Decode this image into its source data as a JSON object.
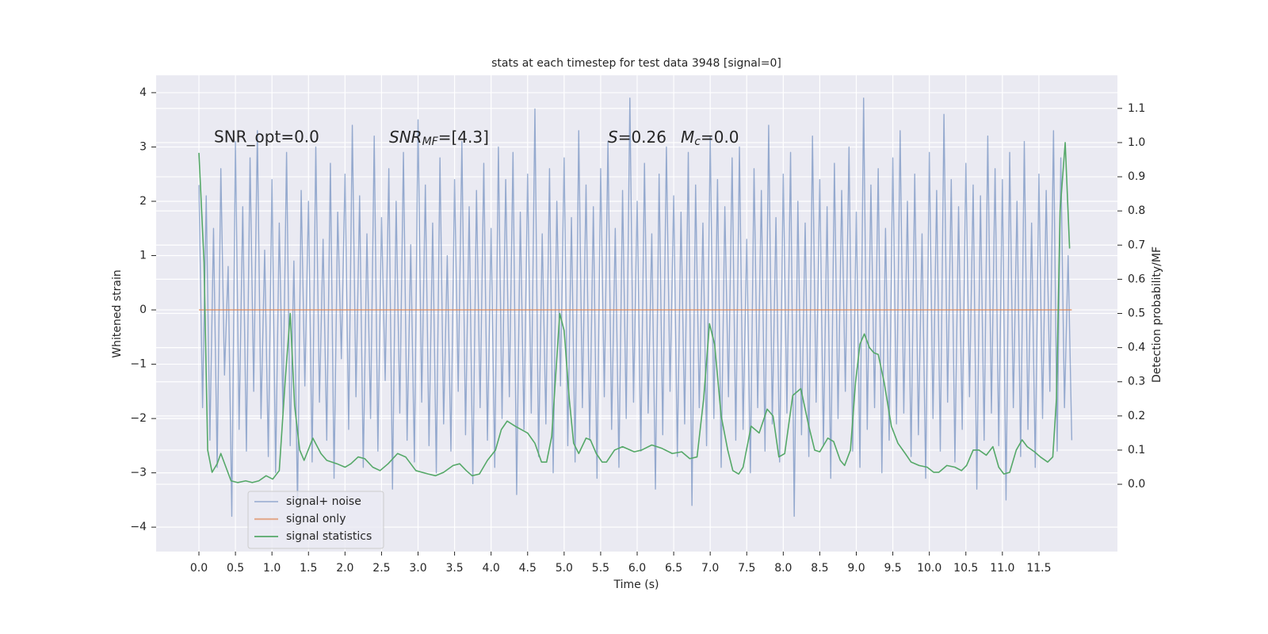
{
  "chart_data": {
    "type": "line",
    "title": "stats at each timestep for test data 3948 [signal=0]",
    "x_label": "Time (s)",
    "y_label": "Whitened strain",
    "y2_label": "Detection probability/MF",
    "annotations": {
      "snr_opt": "SNR_opt=0.0",
      "snr_mf": [
        "SNR",
        "MF",
        "=[4.3]"
      ],
      "s": [
        "S",
        "=0.26"
      ],
      "mc": [
        "M",
        "c",
        "=0.0"
      ]
    },
    "grid": true,
    "legend": "lower left",
    "xlim": [
      -0.586,
      12.575
    ],
    "ylim": [
      -4.45,
      4.32
    ],
    "y2lim": [
      -0.197,
      1.197
    ],
    "xticks": [
      {
        "value": 0,
        "label": "0.0"
      },
      0.5,
      {
        "value": 1,
        "label": "1.0"
      },
      1.5,
      {
        "value": 2,
        "label": "2.0"
      },
      2.5,
      {
        "value": 3,
        "label": "3.0"
      },
      3.5,
      {
        "value": 4,
        "label": "4.0"
      },
      4.5,
      {
        "value": 5,
        "label": "5.0"
      },
      5.5,
      {
        "value": 6,
        "label": "6.0"
      },
      6.5,
      {
        "value": 7,
        "label": "7.0"
      },
      7.5,
      {
        "value": 8,
        "label": "8.0"
      },
      8.5,
      {
        "value": 9,
        "label": "9.0"
      },
      9.5,
      {
        "value": 10,
        "label": "10.0"
      },
      10.5,
      {
        "value": 11,
        "label": "11.0"
      },
      11.5
    ],
    "yticks": [
      {
        "value": -4,
        "label": "−4"
      },
      {
        "value": -3,
        "label": "−3"
      },
      {
        "value": -2,
        "label": "−2"
      },
      {
        "value": -1,
        "label": "−1"
      },
      0,
      1,
      2,
      3,
      4
    ],
    "y2ticks": [
      {
        "value": 0,
        "label": "0.0"
      },
      0.1,
      0.2,
      0.3,
      0.4,
      0.5,
      0.6,
      0.7,
      0.8,
      0.9,
      {
        "value": 1,
        "label": "1.0"
      },
      1.1
    ],
    "series": [
      {
        "name": "signal+ noise",
        "color": "#4c72b0",
        "axis": "y",
        "x": [
          0,
          0.05,
          0.1,
          0.15,
          0.2,
          0.25,
          0.3,
          0.35,
          0.4,
          0.45,
          0.5,
          0.55,
          0.6,
          0.65,
          0.7,
          0.75,
          0.8,
          0.85,
          0.9,
          0.95,
          1,
          1.05,
          1.1,
          1.15,
          1.2,
          1.25,
          1.3,
          1.35,
          1.4,
          1.45,
          1.5,
          1.55,
          1.6,
          1.65,
          1.7,
          1.75,
          1.8,
          1.85,
          1.9,
          1.95,
          2,
          2.05,
          2.1,
          2.15,
          2.2,
          2.25,
          2.3,
          2.35,
          2.4,
          2.45,
          2.5,
          2.55,
          2.6,
          2.65,
          2.7,
          2.75,
          2.8,
          2.85,
          2.9,
          2.95,
          3,
          3.05,
          3.1,
          3.15,
          3.2,
          3.25,
          3.3,
          3.35,
          3.4,
          3.45,
          3.5,
          3.55,
          3.6,
          3.65,
          3.7,
          3.75,
          3.8,
          3.85,
          3.9,
          3.95,
          4,
          4.05,
          4.1,
          4.15,
          4.2,
          4.25,
          4.3,
          4.35,
          4.4,
          4.45,
          4.5,
          4.55,
          4.6,
          4.65,
          4.7,
          4.75,
          4.8,
          4.85,
          4.9,
          4.95,
          5,
          5.05,
          5.1,
          5.15,
          5.2,
          5.25,
          5.3,
          5.35,
          5.4,
          5.45,
          5.5,
          5.55,
          5.6,
          5.65,
          5.7,
          5.75,
          5.8,
          5.85,
          5.9,
          5.95,
          6,
          6.05,
          6.1,
          6.15,
          6.2,
          6.25,
          6.3,
          6.35,
          6.4,
          6.45,
          6.5,
          6.55,
          6.6,
          6.65,
          6.7,
          6.75,
          6.8,
          6.85,
          6.9,
          6.95,
          7,
          7.05,
          7.1,
          7.15,
          7.2,
          7.25,
          7.3,
          7.35,
          7.4,
          7.45,
          7.5,
          7.55,
          7.6,
          7.65,
          7.7,
          7.75,
          7.8,
          7.85,
          7.9,
          7.95,
          8,
          8.05,
          8.1,
          8.15,
          8.2,
          8.25,
          8.3,
          8.35,
          8.4,
          8.45,
          8.5,
          8.55,
          8.6,
          8.65,
          8.7,
          8.75,
          8.8,
          8.85,
          8.9,
          8.95,
          9,
          9.05,
          9.1,
          9.15,
          9.2,
          9.25,
          9.3,
          9.35,
          9.4,
          9.45,
          9.5,
          9.55,
          9.6,
          9.65,
          9.7,
          9.75,
          9.8,
          9.85,
          9.9,
          9.95,
          10,
          10.05,
          10.1,
          10.15,
          10.2,
          10.25,
          10.3,
          10.35,
          10.4,
          10.45,
          10.5,
          10.55,
          10.6,
          10.65,
          10.7,
          10.75,
          10.8,
          10.85,
          10.9,
          10.95,
          11,
          11.05,
          11.1,
          11.15,
          11.2,
          11.25,
          11.3,
          11.35,
          11.4,
          11.45,
          11.5,
          11.55,
          11.6,
          11.65,
          11.7,
          11.75,
          11.8,
          11.85,
          11.9,
          11.95
        ],
        "values": [
          2.3,
          -1.8,
          2.1,
          -2.4,
          1.5,
          -2.9,
          2.6,
          -1.2,
          0.8,
          -3.8,
          3.1,
          -2.2,
          1.9,
          -2.6,
          2.8,
          -1.5,
          3.3,
          -2.0,
          1.1,
          -2.7,
          2.4,
          -3.0,
          1.6,
          -1.9,
          2.9,
          -2.5,
          0.9,
          -3.6,
          2.2,
          -1.4,
          2.0,
          -2.8,
          3.0,
          -1.7,
          1.3,
          -2.4,
          2.7,
          -3.1,
          1.8,
          -0.9,
          2.5,
          -2.2,
          3.4,
          -1.6,
          2.1,
          -2.9,
          1.4,
          -2.0,
          3.2,
          -2.6,
          1.7,
          -1.3,
          2.6,
          -3.3,
          2.0,
          -1.9,
          2.9,
          -2.4,
          1.2,
          -2.8,
          3.5,
          -1.7,
          2.3,
          -2.5,
          1.6,
          -3.0,
          2.8,
          -2.1,
          1.0,
          -2.6,
          2.4,
          -1.5,
          3.1,
          -2.3,
          1.9,
          -3.2,
          2.2,
          -1.8,
          2.7,
          -2.4,
          1.5,
          -2.9,
          3.0,
          -2.0,
          2.4,
          -1.6,
          2.9,
          -3.4,
          1.8,
          -2.2,
          2.5,
          -1.9,
          3.7,
          -2.7,
          1.4,
          -2.1,
          2.6,
          -3.0,
          2.0,
          -1.4,
          2.8,
          -2.5,
          1.7,
          -2.8,
          3.3,
          -1.8,
          2.3,
          -2.4,
          1.9,
          -3.1,
          2.6,
          -1.6,
          3.1,
          -2.2,
          1.5,
          -2.9,
          2.2,
          -2.0,
          3.9,
          -1.7,
          2.0,
          -2.6,
          2.7,
          -1.9,
          1.4,
          -3.3,
          2.5,
          -2.3,
          3.0,
          -1.5,
          2.1,
          -2.7,
          1.8,
          -2.1,
          2.9,
          -3.6,
          2.3,
          -1.8,
          1.6,
          -2.5,
          3.2,
          -2.0,
          2.4,
          -2.9,
          1.9,
          -1.6,
          2.8,
          -2.4,
          3.0,
          -2.2,
          1.3,
          -3.0,
          2.6,
          -1.8,
          2.2,
          -2.6,
          3.4,
          -2.1,
          1.7,
          -2.8,
          2.5,
          -1.9,
          2.9,
          -3.8,
          2.0,
          -2.3,
          1.6,
          -2.7,
          3.2,
          -1.7,
          2.4,
          -2.5,
          1.9,
          -3.1,
          2.7,
          -2.0,
          2.2,
          -1.5,
          3.0,
          -2.6,
          1.8,
          -2.9,
          3.9,
          -2.2,
          2.3,
          -1.8,
          2.6,
          -3.0,
          1.5,
          -2.4,
          2.8,
          -2.1,
          3.3,
          -1.9,
          2.0,
          -2.7,
          2.5,
          -2.3,
          1.4,
          -3.1,
          2.9,
          -2.0,
          2.2,
          -2.6,
          3.6,
          -1.7,
          2.4,
          -2.8,
          1.9,
          -2.2,
          2.7,
          -1.6,
          2.3,
          -3.3,
          2.1,
          -2.4,
          3.2,
          -1.9,
          2.6,
          -2.5,
          2.4,
          -3.5,
          2.9,
          -1.8,
          2.0,
          -2.7,
          3.1,
          -2.2,
          1.6,
          -2.9,
          2.5,
          -2.0,
          2.2,
          -1.5,
          3.3,
          -2.6,
          2.8,
          -1.8,
          1.0,
          -2.4
        ]
      },
      {
        "name": "signal only",
        "color": "#dd8452",
        "axis": "y",
        "x": [
          0,
          11.95
        ],
        "values": [
          0,
          0
        ]
      },
      {
        "name": "signal statistics",
        "color": "#55a868",
        "axis": "y2",
        "x": [
          0,
          0.07,
          0.12,
          0.18,
          0.25,
          0.3,
          0.37,
          0.44,
          0.53,
          0.64,
          0.73,
          0.82,
          0.92,
          1.01,
          1.1,
          1.18,
          1.25,
          1.31,
          1.38,
          1.44,
          1.56,
          1.67,
          1.75,
          1.89,
          2.0,
          2.08,
          2.18,
          2.27,
          2.38,
          2.48,
          2.59,
          2.72,
          2.83,
          2.97,
          3.14,
          3.24,
          3.35,
          3.48,
          3.57,
          3.66,
          3.74,
          3.84,
          3.95,
          4.06,
          4.14,
          4.22,
          4.33,
          4.5,
          4.6,
          4.69,
          4.76,
          4.83,
          4.94,
          5.0,
          5.07,
          5.13,
          5.2,
          5.3,
          5.36,
          5.44,
          5.52,
          5.58,
          5.69,
          5.8,
          5.96,
          6.06,
          6.2,
          6.34,
          6.48,
          6.61,
          6.72,
          6.82,
          6.91,
          6.99,
          7.06,
          7.15,
          7.24,
          7.31,
          7.39,
          7.45,
          7.56,
          7.67,
          7.78,
          7.86,
          7.94,
          8.02,
          8.13,
          8.24,
          8.35,
          8.43,
          8.5,
          8.61,
          8.69,
          8.78,
          8.84,
          8.92,
          8.99,
          9.05,
          9.11,
          9.18,
          9.24,
          9.3,
          9.38,
          9.48,
          9.57,
          9.67,
          9.75,
          9.86,
          9.97,
          10.06,
          10.13,
          10.24,
          10.35,
          10.44,
          10.51,
          10.6,
          10.68,
          10.78,
          10.87,
          10.95,
          11.02,
          11.1,
          11.19,
          11.27,
          11.34,
          11.44,
          11.52,
          11.62,
          11.69,
          11.74,
          11.79,
          11.86,
          11.92
        ],
        "values": [
          0.97,
          0.65,
          0.1,
          0.035,
          0.06,
          0.09,
          0.05,
          0.01,
          0.005,
          0.01,
          0.005,
          0.01,
          0.025,
          0.015,
          0.04,
          0.3,
          0.5,
          0.23,
          0.1,
          0.07,
          0.135,
          0.09,
          0.07,
          0.06,
          0.05,
          0.06,
          0.08,
          0.075,
          0.05,
          0.04,
          0.06,
          0.09,
          0.08,
          0.04,
          0.03,
          0.025,
          0.035,
          0.055,
          0.06,
          0.04,
          0.025,
          0.03,
          0.07,
          0.1,
          0.16,
          0.185,
          0.17,
          0.15,
          0.12,
          0.065,
          0.065,
          0.14,
          0.5,
          0.45,
          0.25,
          0.12,
          0.09,
          0.135,
          0.13,
          0.09,
          0.065,
          0.065,
          0.1,
          0.11,
          0.095,
          0.1,
          0.115,
          0.105,
          0.09,
          0.095,
          0.075,
          0.08,
          0.25,
          0.47,
          0.41,
          0.2,
          0.1,
          0.04,
          0.03,
          0.05,
          0.17,
          0.15,
          0.22,
          0.2,
          0.08,
          0.09,
          0.26,
          0.28,
          0.17,
          0.1,
          0.095,
          0.135,
          0.125,
          0.07,
          0.055,
          0.1,
          0.3,
          0.41,
          0.44,
          0.4,
          0.385,
          0.38,
          0.3,
          0.17,
          0.12,
          0.09,
          0.065,
          0.055,
          0.05,
          0.035,
          0.035,
          0.055,
          0.05,
          0.04,
          0.055,
          0.1,
          0.1,
          0.085,
          0.11,
          0.05,
          0.03,
          0.035,
          0.1,
          0.13,
          0.11,
          0.095,
          0.08,
          0.065,
          0.08,
          0.25,
          0.8,
          1.0,
          0.69
        ]
      }
    ]
  }
}
